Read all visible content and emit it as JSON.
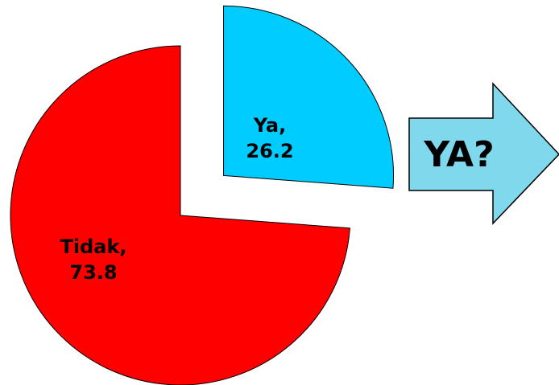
{
  "chart_data": {
    "type": "pie",
    "values": [
      26.2,
      73.8
    ],
    "value_labels": [
      [
        "Ya,",
        "26.2"
      ],
      [
        "Tidak,",
        "73.8"
      ]
    ],
    "colors": [
      "#00ccff",
      "#ff0000"
    ],
    "annotation": "YA?",
    "annotation_color": "#7fd8ec"
  }
}
